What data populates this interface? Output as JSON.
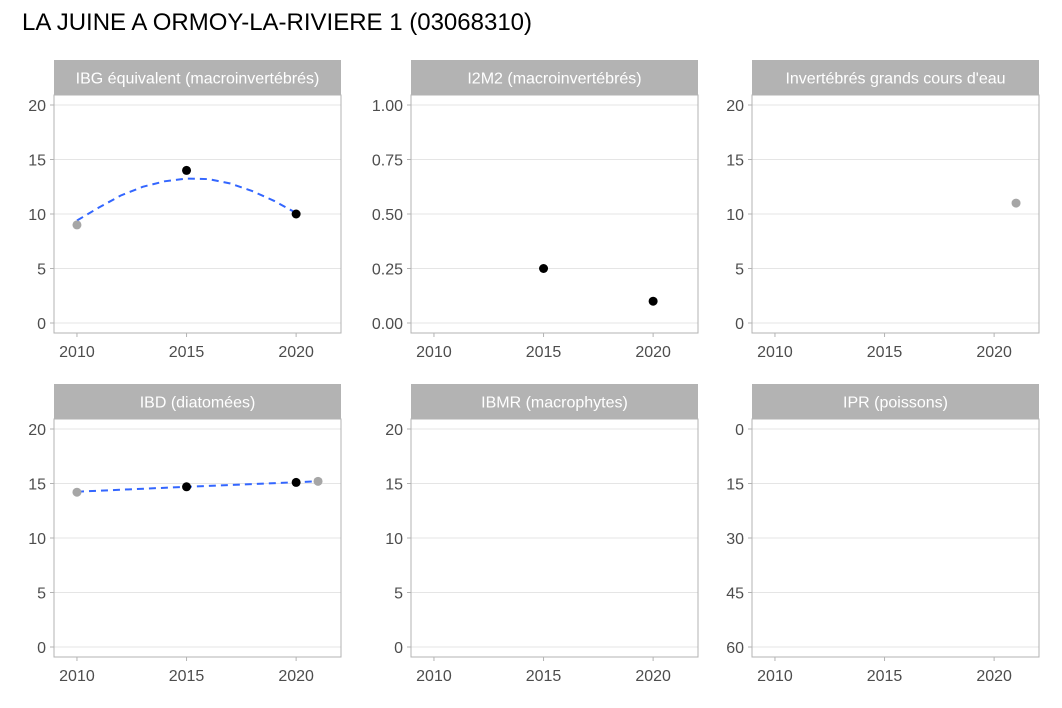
{
  "chart_data": {
    "title": "LA JUINE A ORMOY-LA-RIVIERE 1 (03068310)",
    "type": "scatter",
    "xlim": [
      2009,
      2022
    ],
    "x_ticks": [
      2010,
      2015,
      2020
    ],
    "colors": {
      "point_primary": "#000000",
      "point_secondary": "#a6a6a6",
      "trend": "#3366ff"
    },
    "panels": [
      {
        "title": "IBG équivalent (macroinvertébrés)",
        "ylim": [
          0,
          20
        ],
        "y_reversed": false,
        "y_ticks": [
          0,
          5,
          10,
          15,
          20
        ],
        "y_tick_labels": [
          "0",
          "5",
          "10",
          "15",
          "20"
        ],
        "points": [
          {
            "x": 2010,
            "y": 9,
            "tone": "secondary"
          },
          {
            "x": 2015,
            "y": 14,
            "tone": "primary"
          },
          {
            "x": 2020,
            "y": 10,
            "tone": "primary"
          }
        ],
        "trend": [
          [
            2010,
            9.4
          ],
          [
            2011,
            10.6
          ],
          [
            2012,
            11.7
          ],
          [
            2013,
            12.5
          ],
          [
            2014,
            13.0
          ],
          [
            2015,
            13.25
          ],
          [
            2016,
            13.2
          ],
          [
            2017,
            12.8
          ],
          [
            2018,
            12.1
          ],
          [
            2019,
            11.2
          ],
          [
            2020,
            10.1
          ]
        ]
      },
      {
        "title": "I2M2 (macroinvertébrés)",
        "ylim": [
          0,
          1
        ],
        "y_reversed": false,
        "y_ticks": [
          0,
          0.25,
          0.5,
          0.75,
          1
        ],
        "y_tick_labels": [
          "0.00",
          "0.25",
          "0.50",
          "0.75",
          "1.00"
        ],
        "points": [
          {
            "x": 2015,
            "y": 0.25,
            "tone": "primary"
          },
          {
            "x": 2020,
            "y": 0.1,
            "tone": "primary"
          }
        ],
        "trend": []
      },
      {
        "title": "Invertébrés grands cours d'eau",
        "ylim": [
          0,
          20
        ],
        "y_reversed": false,
        "y_ticks": [
          0,
          5,
          10,
          15,
          20
        ],
        "y_tick_labels": [
          "0",
          "5",
          "10",
          "15",
          "20"
        ],
        "points": [
          {
            "x": 2021,
            "y": 11,
            "tone": "secondary"
          }
        ],
        "trend": []
      },
      {
        "title": "IBD (diatomées)",
        "ylim": [
          0,
          20
        ],
        "y_reversed": false,
        "y_ticks": [
          0,
          5,
          10,
          15,
          20
        ],
        "y_tick_labels": [
          "0",
          "5",
          "10",
          "15",
          "20"
        ],
        "points": [
          {
            "x": 2010,
            "y": 14.2,
            "tone": "secondary"
          },
          {
            "x": 2015,
            "y": 14.7,
            "tone": "primary"
          },
          {
            "x": 2020,
            "y": 15.1,
            "tone": "primary"
          },
          {
            "x": 2021,
            "y": 15.2,
            "tone": "secondary"
          }
        ],
        "trend": [
          [
            2010,
            14.25
          ],
          [
            2015,
            14.7
          ],
          [
            2021,
            15.2
          ]
        ]
      },
      {
        "title": "IBMR (macrophytes)",
        "ylim": [
          0,
          20
        ],
        "y_reversed": false,
        "y_ticks": [
          0,
          5,
          10,
          15,
          20
        ],
        "y_tick_labels": [
          "0",
          "5",
          "10",
          "15",
          "20"
        ],
        "points": [],
        "trend": []
      },
      {
        "title": "IPR (poissons)",
        "ylim": [
          0,
          60
        ],
        "y_reversed": true,
        "y_ticks": [
          0,
          15,
          30,
          45,
          60
        ],
        "y_tick_labels": [
          "0",
          "15",
          "30",
          "45",
          "60"
        ],
        "points": [],
        "trend": []
      }
    ]
  }
}
